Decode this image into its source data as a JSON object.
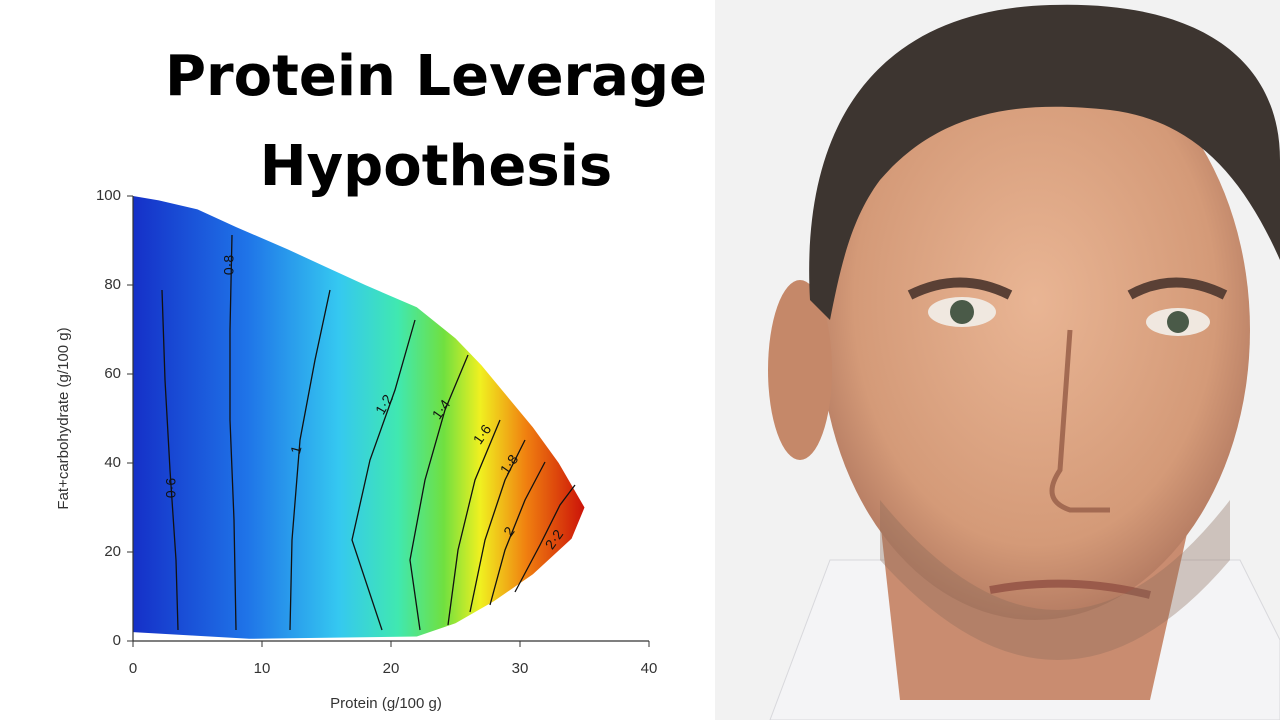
{
  "title_lines": [
    "Protein Leverage",
    "Hypothesis"
  ],
  "chart_data": {
    "type": "contour",
    "xlabel": "Protein (g/100 g)",
    "ylabel": "Fat+carbohydrate (g/100 g)",
    "xlim": [
      0,
      40
    ],
    "ylim": [
      0,
      100
    ],
    "xticks": [
      0,
      10,
      20,
      30,
      40
    ],
    "yticks": [
      0,
      20,
      40,
      60,
      80,
      100
    ],
    "levels": [
      {
        "value": 0.6,
        "label": "0·6"
      },
      {
        "value": 0.8,
        "label": "0·8"
      },
      {
        "value": 1,
        "label": "1"
      },
      {
        "value": 1.2,
        "label": "1·2"
      },
      {
        "value": 1.4,
        "label": "1·4"
      },
      {
        "value": 1.6,
        "label": "1·6"
      },
      {
        "value": 1.8,
        "label": "1·8"
      },
      {
        "value": 2,
        "label": "2"
      },
      {
        "value": 2.2,
        "label": "2·2"
      }
    ]
  }
}
